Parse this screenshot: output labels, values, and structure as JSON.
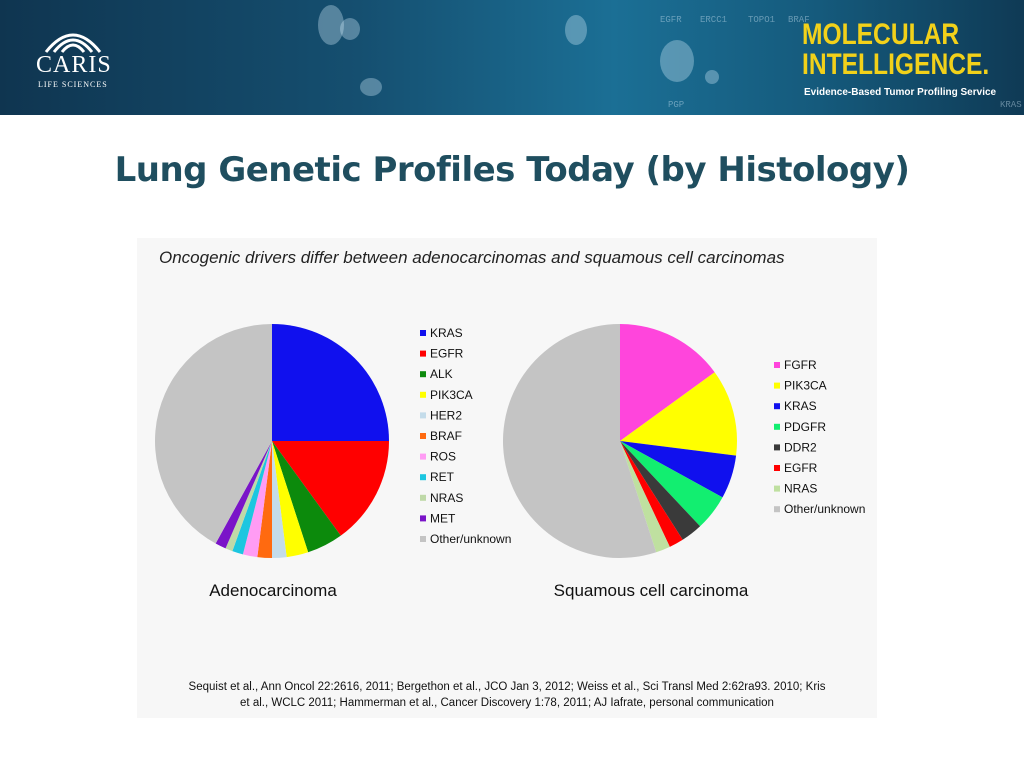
{
  "header": {
    "logo_name": "CARIS",
    "logo_tagline": "LIFE SCIENCES",
    "brand_title_line1": "MOLECULAR",
    "brand_title_line2": "INTELLIGENCE.",
    "brand_subtitle": "Evidence-Based Tumor Profiling Service",
    "background_gene_labels": [
      "EGFR",
      "ERCC1",
      "TOPO1",
      "BRAF",
      "KRAS",
      "PGP"
    ]
  },
  "slide_title": "Lung Genetic Profiles Today (by Histology)",
  "figure_caption": "Oncogenic drivers differ between adenocarcinomas and squamous cell carcinomas",
  "references": {
    "line1": "Sequist et al., Ann Oncol 22:2616, 2011; Bergethon et al., JCO Jan 3, 2012; Weiss et al., Sci Transl Med 2:62ra93. 2010; Kris",
    "line2": "et al., WCLC 2011; Hammerman et al., Cancer Discovery 1:78, 2011; AJ Iafrate, personal communication"
  },
  "chart_data": [
    {
      "type": "pie",
      "label": "Adenocarcinoma",
      "legend_position": "right",
      "slices": [
        {
          "name": "KRAS",
          "value": 25,
          "color": "#1010ee"
        },
        {
          "name": "EGFR",
          "value": 15,
          "color": "#ff0000"
        },
        {
          "name": "ALK",
          "value": 5,
          "color": "#0c8a0c"
        },
        {
          "name": "PIK3CA",
          "value": 3,
          "color": "#ffff00"
        },
        {
          "name": "HER2",
          "value": 2,
          "color": "#c4dcea"
        },
        {
          "name": "BRAF",
          "value": 2,
          "color": "#ff6a10"
        },
        {
          "name": "ROS",
          "value": 2,
          "color": "#ff9cf4"
        },
        {
          "name": "RET",
          "value": 1.5,
          "color": "#1cc6e0"
        },
        {
          "name": "NRAS",
          "value": 1,
          "color": "#bfd9a8"
        },
        {
          "name": "MET",
          "value": 1.5,
          "color": "#7a14c8"
        },
        {
          "name": "Other/unknown",
          "value": 42,
          "color": "#c4c4c4"
        }
      ]
    },
    {
      "type": "pie",
      "label": "Squamous cell carcinoma",
      "legend_position": "right",
      "slices": [
        {
          "name": "FGFR",
          "value": 15,
          "color": "#ff45dc"
        },
        {
          "name": "PIK3CA",
          "value": 12,
          "color": "#ffff00"
        },
        {
          "name": "KRAS",
          "value": 6,
          "color": "#1010ee"
        },
        {
          "name": "PDGFR",
          "value": 5,
          "color": "#12ee70"
        },
        {
          "name": "DDR2",
          "value": 3,
          "color": "#3a3a3a"
        },
        {
          "name": "EGFR",
          "value": 2,
          "color": "#ff0000"
        },
        {
          "name": "NRAS",
          "value": 2,
          "color": "#bfe0a0"
        },
        {
          "name": "Other/unknown",
          "value": 55,
          "color": "#c4c4c4"
        }
      ]
    }
  ]
}
